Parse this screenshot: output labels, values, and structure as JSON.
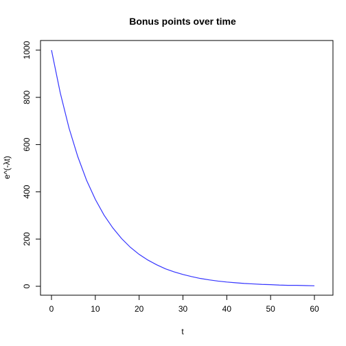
{
  "chart_data": {
    "type": "line",
    "title": "Bonus points over time",
    "xlabel": "t",
    "ylabel": "e^(-λt)",
    "xlim": [
      0,
      60
    ],
    "ylim": [
      0,
      1000
    ],
    "x_ticks": [
      0,
      10,
      20,
      30,
      40,
      50,
      60
    ],
    "y_ticks": [
      0,
      200,
      400,
      600,
      800,
      1000
    ],
    "grid": false,
    "series": [
      {
        "color": "#3333ff",
        "x": [
          0,
          2,
          4,
          6,
          8,
          10,
          12,
          14,
          16,
          18,
          20,
          22,
          24,
          26,
          28,
          30,
          32,
          34,
          36,
          38,
          40,
          42,
          44,
          46,
          48,
          50,
          52,
          54,
          56,
          58,
          60
        ],
        "values": [
          1000,
          819,
          670,
          549,
          449,
          368,
          301,
          247,
          202,
          165,
          135,
          111,
          91,
          74,
          61,
          50,
          41,
          33,
          27,
          22,
          18,
          15,
          12,
          10,
          8,
          7,
          5,
          4,
          4,
          3,
          2
        ]
      }
    ]
  }
}
